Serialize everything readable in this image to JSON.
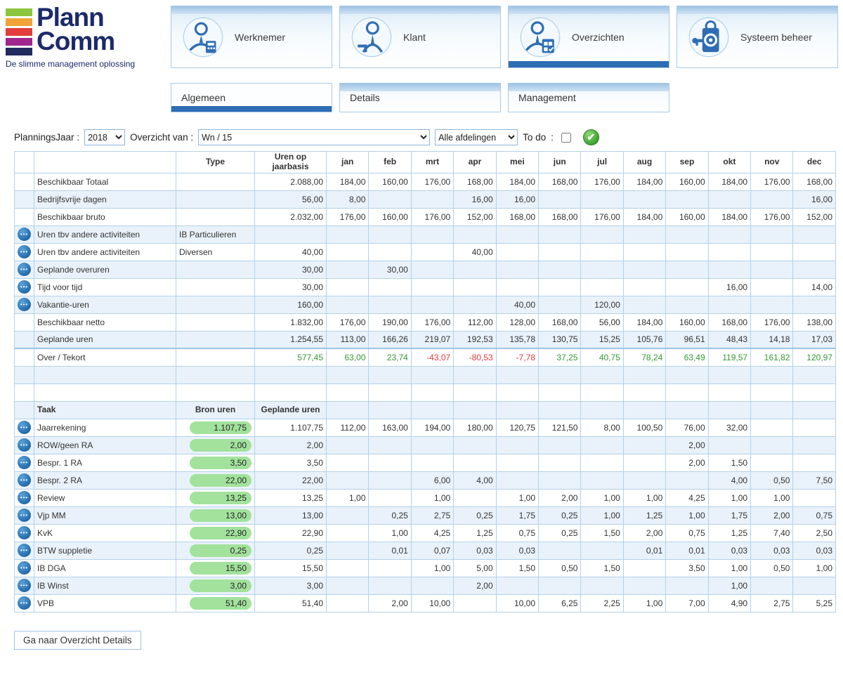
{
  "colors": {
    "accent": "#2e6db4",
    "row_alt": "#e9f2fa",
    "table_border": "#b3d1ea",
    "positive": "#339933",
    "negative": "#e23b3b",
    "pill_green": "#a2e29c"
  },
  "brand": {
    "name_line1": "Plann",
    "name_line2": "Comm",
    "tagline": "De slimme management oplossing",
    "bar_colors": [
      "#8cc63e",
      "#f0a336",
      "#e23c3c",
      "#a0268e",
      "#232a60"
    ]
  },
  "nav": {
    "tabs": [
      {
        "label": "Werknemer",
        "icon": "employee-icon",
        "active": false
      },
      {
        "label": "Klant",
        "icon": "client-icon",
        "active": false
      },
      {
        "label": "Overzichten",
        "icon": "overviews-icon",
        "active": true
      },
      {
        "label": "Systeem beheer",
        "icon": "system-admin-icon",
        "active": false
      }
    ],
    "subtabs": [
      {
        "label": "Algemeen",
        "active": true
      },
      {
        "label": "Details",
        "active": false
      },
      {
        "label": "Management",
        "active": false
      }
    ]
  },
  "filters": {
    "year_label": "PlanningsJaar :",
    "year_value": "2018",
    "overview_label": "Overzicht van  :",
    "overview_value": "Wn / 15",
    "department_value": "Alle afdelingen",
    "todo_label": "To do",
    "todo_separator": ":",
    "todo_checked": false
  },
  "table": {
    "months": [
      "jan",
      "feb",
      "mrt",
      "apr",
      "mei",
      "jun",
      "jul",
      "aug",
      "sep",
      "okt",
      "nov",
      "dec"
    ],
    "availability": {
      "header": {
        "type": "Type",
        "year": "Uren op jaarbasis"
      },
      "rows": [
        {
          "name": "Beschikbaar Totaal",
          "type": "",
          "year": "2.088,00",
          "menu": false,
          "months": [
            "184,00",
            "160,00",
            "176,00",
            "168,00",
            "184,00",
            "168,00",
            "176,00",
            "184,00",
            "160,00",
            "184,00",
            "176,00",
            "168,00"
          ]
        },
        {
          "name": "Bedrijfsvrije dagen",
          "type": "",
          "year": "56,00",
          "menu": false,
          "months": [
            "8,00",
            "",
            "",
            "16,00",
            "16,00",
            "",
            "",
            "",
            "",
            "",
            "",
            "16,00"
          ]
        },
        {
          "name": "Beschikbaar bruto",
          "type": "",
          "year": "2.032,00",
          "menu": false,
          "months": [
            "176,00",
            "160,00",
            "176,00",
            "152,00",
            "168,00",
            "168,00",
            "176,00",
            "184,00",
            "160,00",
            "184,00",
            "176,00",
            "152,00"
          ]
        },
        {
          "name": "Uren tbv andere activiteiten",
          "type": "IB Particulieren",
          "year": "",
          "menu": true,
          "months": [
            "",
            "",
            "",
            "",
            "",
            "",
            "",
            "",
            "",
            "",
            "",
            ""
          ]
        },
        {
          "name": "Uren tbv andere activiteiten",
          "type": "Diversen",
          "year": "40,00",
          "menu": true,
          "months": [
            "",
            "",
            "",
            "40,00",
            "",
            "",
            "",
            "",
            "",
            "",
            "",
            ""
          ]
        },
        {
          "name": "Geplande overuren",
          "type": "",
          "year": "30,00",
          "menu": true,
          "months": [
            "",
            "30,00",
            "",
            "",
            "",
            "",
            "",
            "",
            "",
            "",
            "",
            ""
          ]
        },
        {
          "name": "Tijd voor tijd",
          "type": "",
          "year": "30,00",
          "menu": true,
          "months": [
            "",
            "",
            "",
            "",
            "",
            "",
            "",
            "",
            "",
            "16,00",
            "",
            "14,00"
          ]
        },
        {
          "name": "Vakantie-uren",
          "type": "",
          "year": "160,00",
          "menu": true,
          "months": [
            "",
            "",
            "",
            "",
            "40,00",
            "",
            "120,00",
            "",
            "",
            "",
            "",
            ""
          ]
        },
        {
          "name": "Beschikbaar netto",
          "type": "",
          "year": "1.832,00",
          "menu": false,
          "months": [
            "176,00",
            "190,00",
            "176,00",
            "112,00",
            "128,00",
            "168,00",
            "56,00",
            "184,00",
            "160,00",
            "168,00",
            "176,00",
            "138,00"
          ]
        },
        {
          "name": "Geplande uren",
          "type": "",
          "year": "1.254,55",
          "menu": false,
          "months": [
            "113,00",
            "166,26",
            "219,07",
            "192,53",
            "135,78",
            "130,75",
            "15,25",
            "105,76",
            "96,51",
            "48,43",
            "14,18",
            "17,03"
          ]
        },
        {
          "name": "Over / Tekort",
          "type": "",
          "year": "577,45",
          "menu": false,
          "signed": true,
          "sum": true,
          "months": [
            "63,00",
            "23,74",
            "-43,07",
            "-80,53",
            "-7,78",
            "37,25",
            "40,75",
            "78,24",
            "63,49",
            "119,57",
            "161,82",
            "120,97"
          ]
        }
      ]
    },
    "spacer_rows": 2,
    "tasks": {
      "header": {
        "name": "Taak",
        "bron": "Bron uren",
        "year": "Geplande uren"
      },
      "rows": [
        {
          "name": "Jaarrekening",
          "bron": "1.107,75",
          "year": "1.107,75",
          "months": [
            "112,00",
            "163,00",
            "194,00",
            "180,00",
            "120,75",
            "121,50",
            "8,00",
            "100,50",
            "76,00",
            "32,00",
            "",
            ""
          ]
        },
        {
          "name": "ROW/geen RA",
          "bron": "2,00",
          "year": "2,00",
          "months": [
            "",
            "",
            "",
            "",
            "",
            "",
            "",
            "",
            "2,00",
            "",
            "",
            ""
          ]
        },
        {
          "name": "Bespr. 1 RA",
          "bron": "3,50",
          "year": "3,50",
          "months": [
            "",
            "",
            "",
            "",
            "",
            "",
            "",
            "",
            "2,00",
            "1,50",
            "",
            ""
          ]
        },
        {
          "name": "Bespr. 2 RA",
          "bron": "22,00",
          "year": "22,00",
          "months": [
            "",
            "",
            "6,00",
            "4,00",
            "",
            "",
            "",
            "",
            "",
            "4,00",
            "0,50",
            "7,50"
          ]
        },
        {
          "name": "Review",
          "bron": "13,25",
          "year": "13,25",
          "months": [
            "1,00",
            "",
            "1,00",
            "",
            "1,00",
            "2,00",
            "1,00",
            "1,00",
            "4,25",
            "1,00",
            "1,00",
            ""
          ]
        },
        {
          "name": "Vjp MM",
          "bron": "13,00",
          "year": "13,00",
          "months": [
            "",
            "0,25",
            "2,75",
            "0,25",
            "1,75",
            "0,25",
            "1,00",
            "1,25",
            "1,00",
            "1,75",
            "2,00",
            "0,75"
          ]
        },
        {
          "name": "KvK",
          "bron": "22,90",
          "year": "22,90",
          "months": [
            "",
            "1,00",
            "4,25",
            "1,25",
            "0,75",
            "0,25",
            "1,50",
            "2,00",
            "0,75",
            "1,25",
            "7,40",
            "2,50"
          ]
        },
        {
          "name": "BTW suppletie",
          "bron": "0,25",
          "year": "0,25",
          "months": [
            "",
            "0,01",
            "0,07",
            "0,03",
            "0,03",
            "",
            "",
            "0,01",
            "0,01",
            "0,03",
            "0,03",
            "0,03"
          ]
        },
        {
          "name": "IB DGA",
          "bron": "15,50",
          "year": "15,50",
          "months": [
            "",
            "",
            "1,00",
            "5,00",
            "1,50",
            "0,50",
            "1,50",
            "",
            "3,50",
            "1,00",
            "0,50",
            "1,00"
          ]
        },
        {
          "name": "IB Winst",
          "bron": "3,00",
          "year": "3,00",
          "months": [
            "",
            "",
            "",
            "2,00",
            "",
            "",
            "",
            "",
            "",
            "1,00",
            "",
            ""
          ]
        },
        {
          "name": "VPB",
          "bron": "51,40",
          "year": "51,40",
          "months": [
            "",
            "2,00",
            "10,00",
            "",
            "10,00",
            "6,25",
            "2,25",
            "1,00",
            "7,00",
            "4,90",
            "2,75",
            "5,25"
          ]
        }
      ]
    }
  },
  "footer": {
    "details_button": "Ga naar Overzicht Details"
  }
}
